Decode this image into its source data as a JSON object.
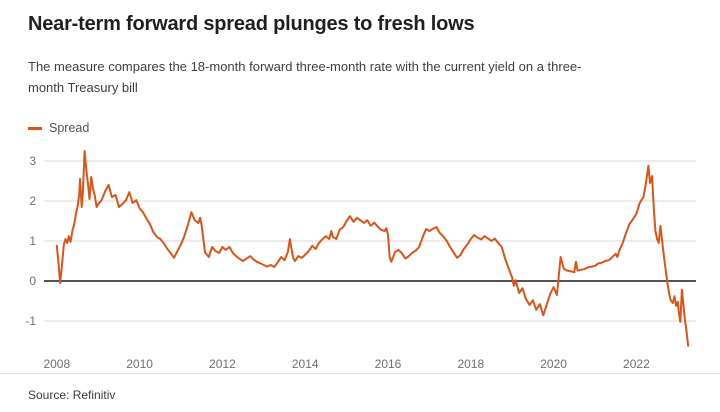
{
  "header": {
    "title": "Near-term forward spread plunges to fresh lows",
    "subtitle_lines": [
      "The measure compares the 18-month forward three-month rate with the current yield on a three-",
      "month Treasury bill"
    ]
  },
  "legend": {
    "label": "Spread",
    "color": "#dc5418"
  },
  "source": {
    "text": "Source: Refinitiv"
  },
  "colors": {
    "accent": "#dc5418",
    "title_text": "#1f1f1f",
    "subtitle_text": "#3f3f3f",
    "axis_text": "#6f6f6f",
    "gridline": "#d9d9d9",
    "zero_line": "#1a1a1a",
    "divider": "#e3e3e3"
  },
  "chart_data": {
    "type": "line",
    "title": "Near-term forward spread plunges to fresh lows",
    "xlabel": "",
    "ylabel": "",
    "grid": true,
    "zero_line": true,
    "legend_position": "top-left",
    "x_ticks": [
      2008,
      2010,
      2012,
      2014,
      2016,
      2018,
      2020,
      2022
    ],
    "y_ticks": [
      3,
      2,
      1,
      0,
      -1
    ],
    "x_range": [
      2007.69,
      2023.44
    ],
    "y_range": [
      -1.75,
      3.575
    ],
    "series": [
      {
        "name": "Spread",
        "color": "#dc5418",
        "points": [
          [
            2008.0,
            0.88
          ],
          [
            2008.04,
            0.45
          ],
          [
            2008.08,
            -0.05
          ],
          [
            2008.12,
            0.35
          ],
          [
            2008.17,
            0.92
          ],
          [
            2008.21,
            1.05
          ],
          [
            2008.25,
            0.95
          ],
          [
            2008.29,
            1.12
          ],
          [
            2008.33,
            0.98
          ],
          [
            2008.38,
            1.28
          ],
          [
            2008.42,
            1.42
          ],
          [
            2008.46,
            1.68
          ],
          [
            2008.5,
            1.85
          ],
          [
            2008.54,
            2.15
          ],
          [
            2008.56,
            2.55
          ],
          [
            2008.6,
            1.85
          ],
          [
            2008.63,
            2.25
          ],
          [
            2008.67,
            3.25
          ],
          [
            2008.71,
            2.8
          ],
          [
            2008.75,
            2.45
          ],
          [
            2008.79,
            2.05
          ],
          [
            2008.83,
            2.6
          ],
          [
            2008.88,
            2.28
          ],
          [
            2008.92,
            2.12
          ],
          [
            2008.96,
            1.85
          ],
          [
            2009.0,
            1.92
          ],
          [
            2009.08,
            2.02
          ],
          [
            2009.17,
            2.25
          ],
          [
            2009.25,
            2.4
          ],
          [
            2009.33,
            2.1
          ],
          [
            2009.42,
            2.15
          ],
          [
            2009.5,
            1.85
          ],
          [
            2009.58,
            1.92
          ],
          [
            2009.67,
            2.02
          ],
          [
            2009.75,
            2.22
          ],
          [
            2009.83,
            1.95
          ],
          [
            2009.92,
            2.02
          ],
          [
            2010.0,
            1.82
          ],
          [
            2010.08,
            1.72
          ],
          [
            2010.17,
            1.55
          ],
          [
            2010.25,
            1.42
          ],
          [
            2010.33,
            1.22
          ],
          [
            2010.42,
            1.1
          ],
          [
            2010.5,
            1.05
          ],
          [
            2010.58,
            0.95
          ],
          [
            2010.67,
            0.8
          ],
          [
            2010.75,
            0.7
          ],
          [
            2010.83,
            0.58
          ],
          [
            2010.92,
            0.76
          ],
          [
            2011.0,
            0.92
          ],
          [
            2011.08,
            1.12
          ],
          [
            2011.17,
            1.42
          ],
          [
            2011.25,
            1.72
          ],
          [
            2011.33,
            1.52
          ],
          [
            2011.42,
            1.45
          ],
          [
            2011.46,
            1.58
          ],
          [
            2011.5,
            1.38
          ],
          [
            2011.58,
            0.72
          ],
          [
            2011.67,
            0.6
          ],
          [
            2011.75,
            0.85
          ],
          [
            2011.83,
            0.75
          ],
          [
            2011.92,
            0.7
          ],
          [
            2012.0,
            0.85
          ],
          [
            2012.08,
            0.78
          ],
          [
            2012.17,
            0.85
          ],
          [
            2012.25,
            0.7
          ],
          [
            2012.33,
            0.62
          ],
          [
            2012.42,
            0.55
          ],
          [
            2012.5,
            0.5
          ],
          [
            2012.58,
            0.56
          ],
          [
            2012.67,
            0.62
          ],
          [
            2012.75,
            0.54
          ],
          [
            2012.83,
            0.48
          ],
          [
            2012.92,
            0.44
          ],
          [
            2013.0,
            0.4
          ],
          [
            2013.08,
            0.36
          ],
          [
            2013.17,
            0.4
          ],
          [
            2013.25,
            0.35
          ],
          [
            2013.33,
            0.46
          ],
          [
            2013.42,
            0.6
          ],
          [
            2013.5,
            0.52
          ],
          [
            2013.58,
            0.72
          ],
          [
            2013.63,
            1.05
          ],
          [
            2013.67,
            0.78
          ],
          [
            2013.71,
            0.58
          ],
          [
            2013.75,
            0.5
          ],
          [
            2013.83,
            0.62
          ],
          [
            2013.92,
            0.58
          ],
          [
            2014.0,
            0.66
          ],
          [
            2014.08,
            0.74
          ],
          [
            2014.17,
            0.88
          ],
          [
            2014.25,
            0.8
          ],
          [
            2014.33,
            0.95
          ],
          [
            2014.42,
            1.05
          ],
          [
            2014.5,
            1.12
          ],
          [
            2014.58,
            1.05
          ],
          [
            2014.63,
            1.25
          ],
          [
            2014.67,
            1.1
          ],
          [
            2014.75,
            1.05
          ],
          [
            2014.83,
            1.28
          ],
          [
            2014.92,
            1.35
          ],
          [
            2015.0,
            1.5
          ],
          [
            2015.08,
            1.62
          ],
          [
            2015.17,
            1.48
          ],
          [
            2015.25,
            1.58
          ],
          [
            2015.33,
            1.52
          ],
          [
            2015.42,
            1.45
          ],
          [
            2015.5,
            1.52
          ],
          [
            2015.58,
            1.38
          ],
          [
            2015.67,
            1.46
          ],
          [
            2015.75,
            1.36
          ],
          [
            2015.83,
            1.28
          ],
          [
            2015.92,
            1.25
          ],
          [
            2015.96,
            1.32
          ],
          [
            2016.0,
            1.15
          ],
          [
            2016.04,
            0.6
          ],
          [
            2016.08,
            0.48
          ],
          [
            2016.17,
            0.72
          ],
          [
            2016.25,
            0.78
          ],
          [
            2016.33,
            0.7
          ],
          [
            2016.42,
            0.56
          ],
          [
            2016.5,
            0.62
          ],
          [
            2016.58,
            0.7
          ],
          [
            2016.67,
            0.76
          ],
          [
            2016.75,
            0.85
          ],
          [
            2016.83,
            1.08
          ],
          [
            2016.92,
            1.3
          ],
          [
            2017.0,
            1.25
          ],
          [
            2017.08,
            1.3
          ],
          [
            2017.17,
            1.35
          ],
          [
            2017.25,
            1.2
          ],
          [
            2017.33,
            1.12
          ],
          [
            2017.42,
            1.0
          ],
          [
            2017.5,
            0.85
          ],
          [
            2017.58,
            0.72
          ],
          [
            2017.67,
            0.58
          ],
          [
            2017.75,
            0.65
          ],
          [
            2017.83,
            0.8
          ],
          [
            2017.92,
            0.92
          ],
          [
            2018.0,
            1.05
          ],
          [
            2018.08,
            1.15
          ],
          [
            2018.17,
            1.08
          ],
          [
            2018.25,
            1.04
          ],
          [
            2018.33,
            1.12
          ],
          [
            2018.42,
            1.06
          ],
          [
            2018.5,
            1.0
          ],
          [
            2018.58,
            1.06
          ],
          [
            2018.67,
            0.94
          ],
          [
            2018.75,
            0.85
          ],
          [
            2018.83,
            0.55
          ],
          [
            2018.92,
            0.3
          ],
          [
            2019.0,
            0.08
          ],
          [
            2019.04,
            -0.12
          ],
          [
            2019.08,
            0.02
          ],
          [
            2019.17,
            -0.3
          ],
          [
            2019.25,
            -0.18
          ],
          [
            2019.33,
            -0.45
          ],
          [
            2019.42,
            -0.6
          ],
          [
            2019.5,
            -0.48
          ],
          [
            2019.58,
            -0.72
          ],
          [
            2019.67,
            -0.58
          ],
          [
            2019.75,
            -0.86
          ],
          [
            2019.83,
            -0.6
          ],
          [
            2019.92,
            -0.32
          ],
          [
            2020.0,
            -0.15
          ],
          [
            2020.08,
            -0.35
          ],
          [
            2020.17,
            0.6
          ],
          [
            2020.25,
            0.3
          ],
          [
            2020.33,
            0.26
          ],
          [
            2020.42,
            0.24
          ],
          [
            2020.5,
            0.22
          ],
          [
            2020.54,
            0.48
          ],
          [
            2020.58,
            0.26
          ],
          [
            2020.67,
            0.28
          ],
          [
            2020.75,
            0.3
          ],
          [
            2020.83,
            0.34
          ],
          [
            2020.92,
            0.36
          ],
          [
            2021.0,
            0.38
          ],
          [
            2021.08,
            0.44
          ],
          [
            2021.17,
            0.46
          ],
          [
            2021.25,
            0.5
          ],
          [
            2021.33,
            0.52
          ],
          [
            2021.42,
            0.6
          ],
          [
            2021.5,
            0.68
          ],
          [
            2021.54,
            0.6
          ],
          [
            2021.58,
            0.74
          ],
          [
            2021.67,
            0.95
          ],
          [
            2021.75,
            1.2
          ],
          [
            2021.83,
            1.42
          ],
          [
            2021.92,
            1.55
          ],
          [
            2022.0,
            1.68
          ],
          [
            2022.08,
            1.95
          ],
          [
            2022.17,
            2.1
          ],
          [
            2022.21,
            2.32
          ],
          [
            2022.25,
            2.58
          ],
          [
            2022.29,
            2.88
          ],
          [
            2022.33,
            2.45
          ],
          [
            2022.38,
            2.62
          ],
          [
            2022.42,
            1.8
          ],
          [
            2022.46,
            1.25
          ],
          [
            2022.5,
            1.05
          ],
          [
            2022.54,
            0.95
          ],
          [
            2022.58,
            1.38
          ],
          [
            2022.63,
            0.92
          ],
          [
            2022.67,
            0.58
          ],
          [
            2022.71,
            0.25
          ],
          [
            2022.75,
            -0.05
          ],
          [
            2022.79,
            -0.3
          ],
          [
            2022.83,
            -0.48
          ],
          [
            2022.88,
            -0.55
          ],
          [
            2022.92,
            -0.38
          ],
          [
            2022.96,
            -0.62
          ],
          [
            2023.0,
            -0.52
          ],
          [
            2023.02,
            -0.75
          ],
          [
            2023.06,
            -1.02
          ],
          [
            2023.1,
            -0.22
          ],
          [
            2023.13,
            -0.55
          ],
          [
            2023.17,
            -0.95
          ],
          [
            2023.21,
            -1.25
          ],
          [
            2023.25,
            -1.62
          ]
        ]
      }
    ]
  }
}
